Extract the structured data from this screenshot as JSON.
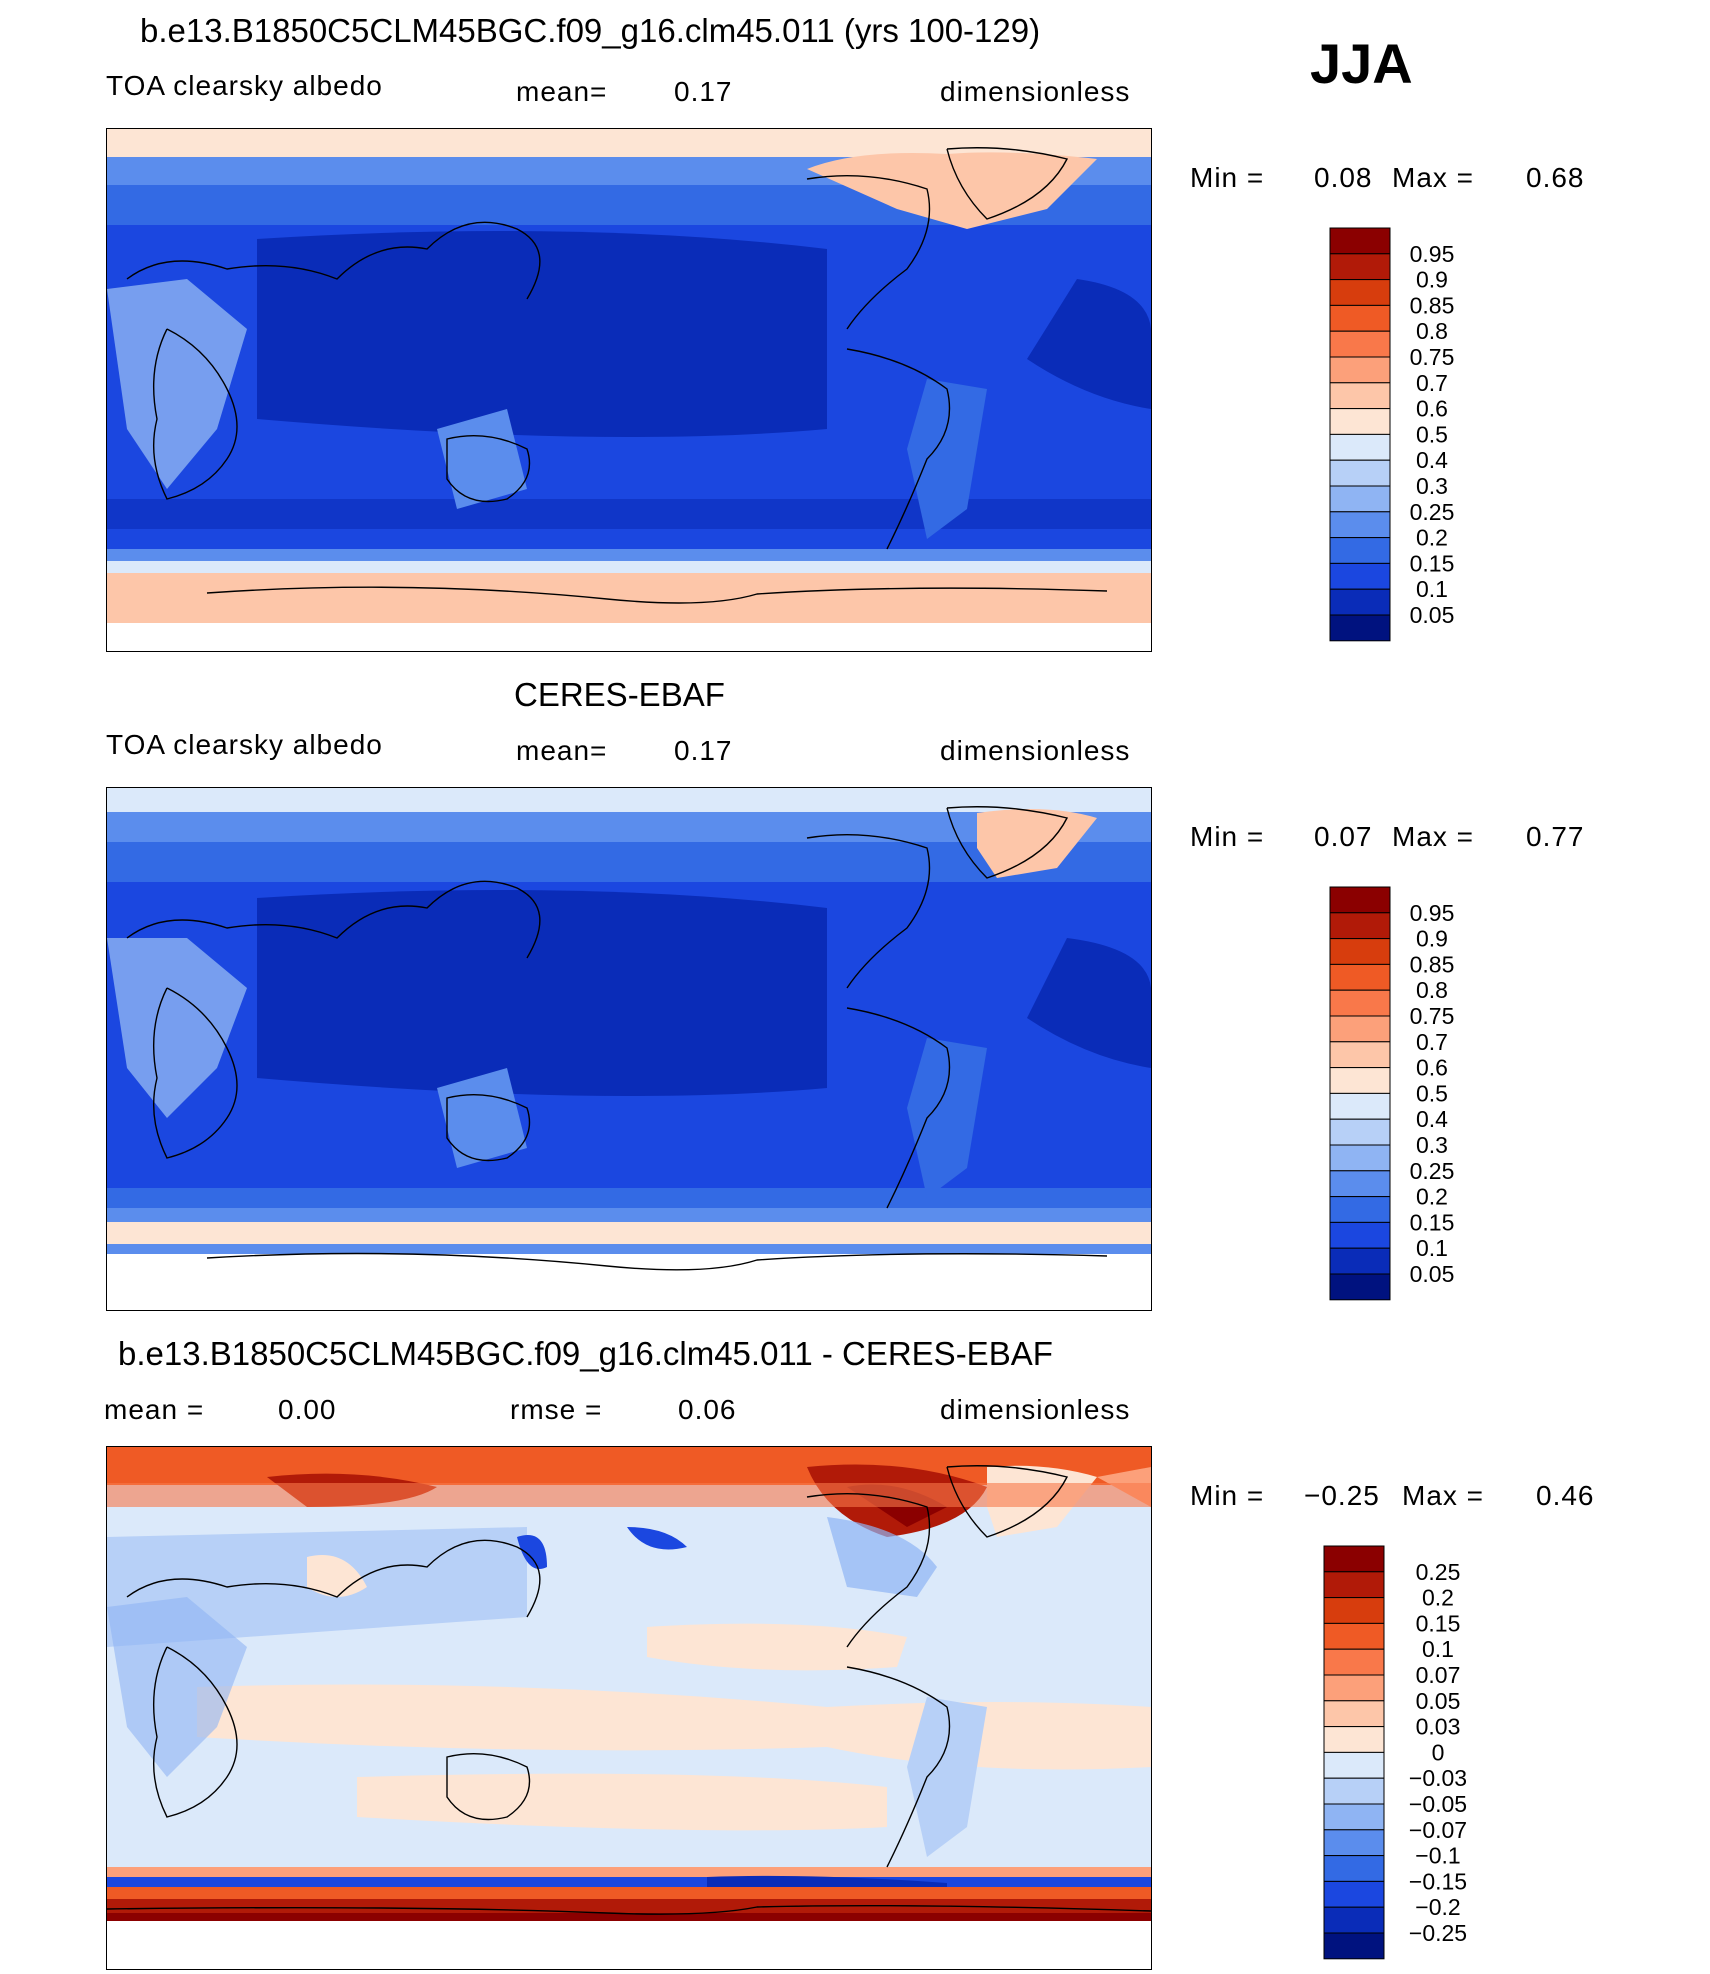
{
  "season": "JJA",
  "panels": [
    {
      "title": "b.e13.B1850C5CLM45BGC.f09_g16.clm45.011 (yrs 100-129)",
      "left_label": "TOA clearsky albedo",
      "center_label": "mean=",
      "center_value": "0.17",
      "units": "dimensionless",
      "min_label": "Min =",
      "min_value": "0.08",
      "max_label": "Max =",
      "max_value": "0.68",
      "colorbar": [
        "0.95",
        "0.9",
        "0.85",
        "0.8",
        "0.75",
        "0.7",
        "0.6",
        "0.5",
        "0.4",
        "0.3",
        "0.25",
        "0.2",
        "0.15",
        "0.1",
        "0.05"
      ]
    },
    {
      "title": "CERES-EBAF",
      "left_label": "TOA clearsky albedo",
      "center_label": "mean=",
      "center_value": "0.17",
      "units": "dimensionless",
      "min_label": "Min =",
      "min_value": "0.07",
      "max_label": "Max =",
      "max_value": "0.77",
      "colorbar": [
        "0.95",
        "0.9",
        "0.85",
        "0.8",
        "0.75",
        "0.7",
        "0.6",
        "0.5",
        "0.4",
        "0.3",
        "0.25",
        "0.2",
        "0.15",
        "0.1",
        "0.05"
      ]
    },
    {
      "title": "b.e13.B1850C5CLM45BGC.f09_g16.clm45.011 - CERES-EBAF",
      "left_label": "mean =",
      "left_value": "0.00",
      "center_label": "rmse =",
      "center_value": "0.06",
      "units": "dimensionless",
      "min_label": "Min =",
      "min_value": "−0.25",
      "max_label": "Max =",
      "max_value": "0.46",
      "colorbar": [
        "0.25",
        "0.2",
        "0.15",
        "0.1",
        "0.07",
        "0.05",
        "0.03",
        "0",
        "−0.03",
        "−0.05",
        "−0.07",
        "−0.1",
        "−0.15",
        "−0.2",
        "−0.25"
      ]
    }
  ],
  "colors": {
    "abs_scale": [
      "#8b0000",
      "#b11a08",
      "#d73d0d",
      "#ef5a25",
      "#f9784a",
      "#fca07a",
      "#fdc6a9",
      "#fde5d4",
      "#dbe9fa",
      "#b7d0f7",
      "#8fb4f3",
      "#5b8ded",
      "#336ae4",
      "#1b47e0",
      "#0a2cb8",
      "#00127f"
    ],
    "diff_scale": [
      "#8b0000",
      "#b11a08",
      "#d73d0d",
      "#ef5a25",
      "#f9784a",
      "#fca07a",
      "#fdc6a9",
      "#fde5d4",
      "#dbe9fa",
      "#b7d0f7",
      "#8fb4f3",
      "#5b8ded",
      "#336ae4",
      "#1b47e0",
      "#0a2cb8",
      "#00127f"
    ]
  }
}
